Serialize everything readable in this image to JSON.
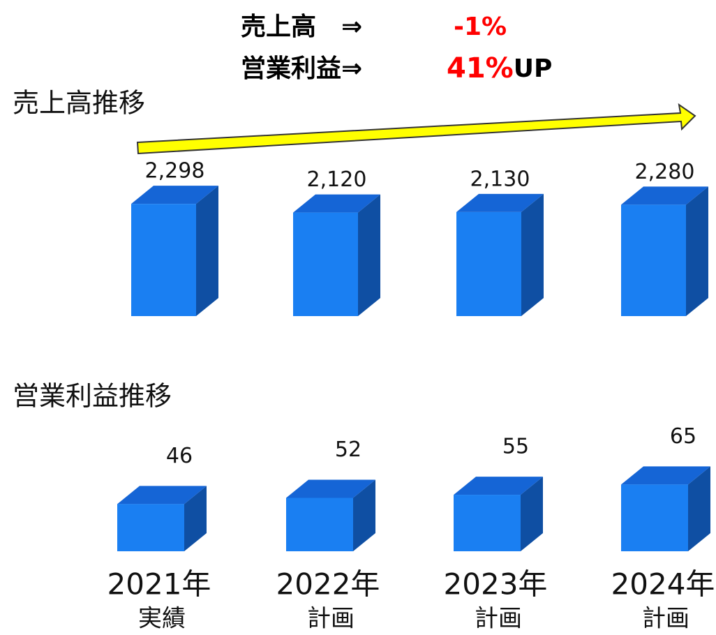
{
  "headline": [
    {
      "label": "売上高　⇒",
      "change": "-1%"
    },
    {
      "label": "営業利益⇒",
      "change": "41%",
      "suffix": "UP"
    }
  ],
  "chart_data": [
    {
      "type": "bar3d",
      "title": "売上高推移",
      "categories": [
        "2021年",
        "2022年",
        "2023年",
        "2024年"
      ],
      "values": [
        2298,
        2120,
        2130,
        2280
      ],
      "value_labels": [
        "2,298",
        "2,120",
        "2,130",
        "2,280"
      ],
      "ylim": [
        0,
        2300
      ],
      "color": "#1a7ff2"
    },
    {
      "type": "bar3d",
      "title": "営業利益推移",
      "categories": [
        "2021年",
        "2022年",
        "2023年",
        "2024年"
      ],
      "category_notes": [
        "実績",
        "計画",
        "計画",
        "計画"
      ],
      "values": [
        46,
        52,
        55,
        65
      ],
      "ylim": [
        0,
        70
      ],
      "color": "#1a7ff2"
    }
  ]
}
